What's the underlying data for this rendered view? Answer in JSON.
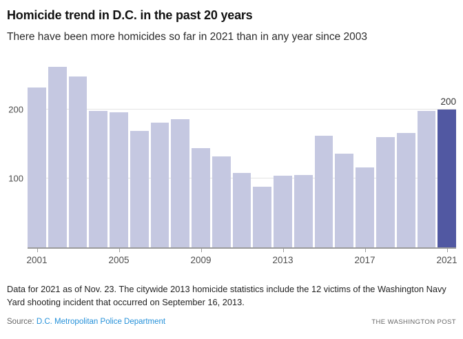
{
  "header": {
    "title": "Homicide trend in D.C. in the past 20 years",
    "subtitle": "There have been more homicides so far in 2021 than in any year since 2003"
  },
  "chart_data": {
    "type": "bar",
    "title": "Homicide trend in D.C. in the past 20 years",
    "xlabel": "",
    "ylabel": "",
    "categories": [
      2001,
      2002,
      2003,
      2004,
      2005,
      2006,
      2007,
      2008,
      2009,
      2010,
      2011,
      2012,
      2013,
      2014,
      2015,
      2016,
      2017,
      2018,
      2019,
      2020,
      2021
    ],
    "values": [
      232,
      262,
      248,
      198,
      196,
      169,
      181,
      186,
      144,
      132,
      108,
      88,
      104,
      105,
      162,
      136,
      116,
      160,
      166,
      198,
      200
    ],
    "ylim": [
      0,
      272
    ],
    "yticks": [
      100,
      200
    ],
    "xticks": [
      2001,
      2005,
      2009,
      2013,
      2017,
      2021
    ],
    "grid": true,
    "legend": false,
    "bar_color": "#c5c8e1",
    "highlight_category": 2021,
    "highlight_color": "#5158a2",
    "annotation": {
      "category": 2021,
      "text": "200"
    }
  },
  "colors": {
    "gridline": "#e4e4e4",
    "axis": "#9b9b9b",
    "link_blue": "#2490d9"
  },
  "footer": {
    "note": "Data for 2021 as of Nov. 23. The citywide 2013 homicide statistics include the 12 victims of the Washington Navy Yard shooting incident that occurred on September 16, 2013.",
    "source_label": "Source:",
    "source_link": "D.C. Metropolitan Police Department",
    "publisher": "THE WASHINGTON POST"
  }
}
